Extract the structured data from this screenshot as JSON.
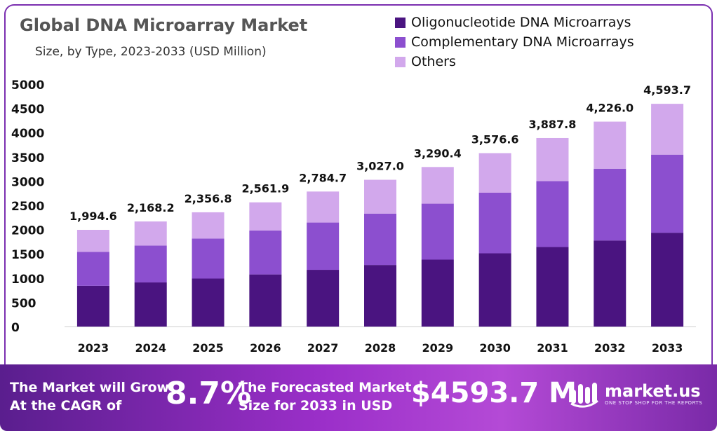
{
  "header": {
    "title": "Global DNA Microarray Market",
    "subtitle": "Size, by Type, 2023-2033 (USD Million)"
  },
  "colors": {
    "oligo": "#4a1480",
    "complementary": "#8c4fcf",
    "others": "#d2a8ec",
    "frame": "#7b2fb0"
  },
  "chart_data": {
    "type": "bar",
    "stacked": true,
    "categories": [
      "2023",
      "2024",
      "2025",
      "2026",
      "2027",
      "2028",
      "2029",
      "2030",
      "2031",
      "2032",
      "2033"
    ],
    "series": [
      {
        "name": "Oligonucleotide DNA Microarrays",
        "values": [
          840,
          910,
          990,
          1075,
          1170,
          1270,
          1380,
          1510,
          1640,
          1775,
          1935
        ]
      },
      {
        "name": "Complementary DNA Microarrays",
        "values": [
          700,
          760,
          825,
          905,
          975,
          1060,
          1155,
          1250,
          1360,
          1480,
          1610
        ]
      },
      {
        "name": "Others",
        "values": [
          454.6,
          498.2,
          541.8,
          581.9,
          639.7,
          697.0,
          755.4,
          816.6,
          887.8,
          971.0,
          1048.7
        ]
      }
    ],
    "totals": [
      "1,994.6",
      "2,168.2",
      "2,356.8",
      "2,561.9",
      "2,784.7",
      "3,027.0",
      "3,290.4",
      "3,576.6",
      "3,887.8",
      "4,226.0",
      "4,593.7"
    ],
    "y_ticks": [
      "0",
      "500",
      "1000",
      "1500",
      "2000",
      "2500",
      "3000",
      "3500",
      "4000",
      "4500",
      "5000"
    ],
    "ylim": [
      0,
      5000
    ],
    "xlabel": "",
    "ylabel": "",
    "legend_position": "top-right",
    "grid": false
  },
  "footer": {
    "cagr_text_line1": "The Market will Grow",
    "cagr_text_line2": "At the CAGR of",
    "cagr_value": "8.7%",
    "forecast_text_line1": "The Forecasted Market",
    "forecast_text_line2": "Size for 2033 in USD",
    "forecast_value": "$4593.7 M",
    "brand_name": "market.us",
    "brand_tagline": "ONE STOP SHOP FOR THE REPORTS",
    "brand_icon": "market-us-logo-icon"
  }
}
